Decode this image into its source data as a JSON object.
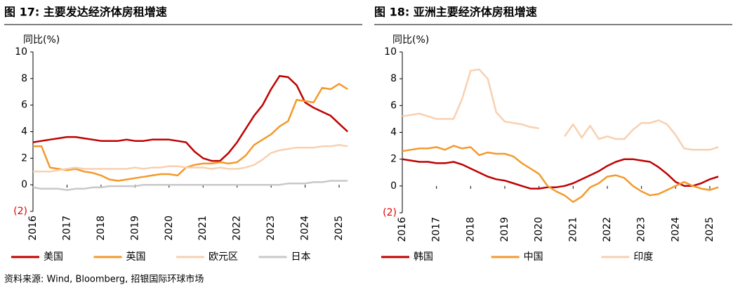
{
  "chart_data": [
    {
      "type": "line",
      "title": "图 17: 主要发达经济体房租增速",
      "y_label": "同比(%)",
      "x": [
        2016,
        2016.25,
        2016.5,
        2016.75,
        2017,
        2017.25,
        2017.5,
        2017.75,
        2018,
        2018.25,
        2018.5,
        2018.75,
        2019,
        2019.25,
        2019.5,
        2019.75,
        2020,
        2020.25,
        2020.5,
        2020.75,
        2021,
        2021.25,
        2021.5,
        2021.75,
        2022,
        2022.25,
        2022.5,
        2022.75,
        2023,
        2023.25,
        2023.5,
        2023.75,
        2024,
        2024.25,
        2024.5,
        2024.75,
        2025,
        2025.25
      ],
      "xlim": [
        2016,
        2025.35
      ],
      "xticks": [
        2016,
        2017,
        2018,
        2019,
        2020,
        2021,
        2022,
        2023,
        2024,
        2025
      ],
      "ylim": [
        -2,
        10
      ],
      "yticks": [
        {
          "value": -2,
          "label": "(2)"
        },
        0,
        2,
        4,
        6,
        8,
        10
      ],
      "negative_tick_color": "#e00000",
      "grid": false,
      "legend": "bottom",
      "series": [
        {
          "name": "美国",
          "color": "#c00000",
          "values": [
            3.2,
            3.3,
            3.4,
            3.5,
            3.6,
            3.6,
            3.5,
            3.4,
            3.3,
            3.3,
            3.3,
            3.4,
            3.3,
            3.3,
            3.4,
            3.4,
            3.4,
            3.3,
            3.2,
            2.5,
            2.0,
            1.8,
            1.8,
            2.4,
            3.2,
            4.2,
            5.2,
            6.0,
            7.2,
            8.2,
            8.1,
            7.5,
            6.2,
            5.8,
            5.5,
            5.2,
            4.6,
            4.0
          ]
        },
        {
          "name": "英国",
          "color": "#f39a2c",
          "values": [
            2.9,
            2.9,
            1.3,
            1.2,
            1.1,
            1.2,
            1.0,
            0.9,
            0.7,
            0.4,
            0.3,
            0.4,
            0.5,
            0.6,
            0.7,
            0.8,
            0.8,
            0.7,
            1.3,
            1.5,
            1.6,
            1.6,
            1.7,
            1.6,
            1.7,
            2.2,
            3.0,
            3.4,
            3.8,
            4.4,
            4.8,
            6.4,
            6.3,
            6.2,
            7.3,
            7.2,
            7.6,
            7.2
          ]
        },
        {
          "name": "欧元区",
          "color": "#f8d0b0",
          "values": [
            1.0,
            1.0,
            1.0,
            1.1,
            1.2,
            1.3,
            1.2,
            1.2,
            1.2,
            1.2,
            1.2,
            1.2,
            1.3,
            1.2,
            1.3,
            1.3,
            1.4,
            1.4,
            1.3,
            1.3,
            1.3,
            1.2,
            1.3,
            1.2,
            1.2,
            1.3,
            1.5,
            1.9,
            2.4,
            2.6,
            2.7,
            2.8,
            2.8,
            2.8,
            2.9,
            2.9,
            3.0,
            2.9
          ]
        },
        {
          "name": "日本",
          "color": "#c8c8c8",
          "values": [
            -0.2,
            -0.3,
            -0.3,
            -0.3,
            -0.4,
            -0.3,
            -0.3,
            -0.2,
            -0.2,
            -0.1,
            -0.1,
            -0.1,
            -0.1,
            0,
            0,
            0,
            0,
            0,
            0,
            0,
            0,
            0,
            0,
            0,
            0,
            0,
            0,
            0,
            0,
            0,
            0.1,
            0.1,
            0.1,
            0.2,
            0.2,
            0.3,
            0.3,
            0.3
          ]
        }
      ]
    },
    {
      "type": "line",
      "title": "图 18: 亚洲主要经济体房租增速",
      "y_label": "同比(%)",
      "x": [
        2016,
        2016.25,
        2016.5,
        2016.75,
        2017,
        2017.25,
        2017.5,
        2017.75,
        2018,
        2018.25,
        2018.5,
        2018.75,
        2019,
        2019.25,
        2019.5,
        2019.75,
        2020,
        2020.25,
        2020.5,
        2020.75,
        2021,
        2021.25,
        2021.5,
        2021.75,
        2022,
        2022.25,
        2022.5,
        2022.75,
        2023,
        2023.25,
        2023.5,
        2023.75,
        2024,
        2024.25,
        2024.5,
        2024.75,
        2025,
        2025.25
      ],
      "xlim": [
        2016,
        2025.35
      ],
      "xticks": [
        2016,
        2017,
        2018,
        2019,
        2020,
        2021,
        2022,
        2023,
        2024,
        2025
      ],
      "ylim": [
        -2,
        10
      ],
      "yticks": [
        {
          "value": -2,
          "label": "(2)"
        },
        0,
        2,
        4,
        6,
        8,
        10
      ],
      "negative_tick_color": "#e00000",
      "grid": false,
      "legend": "bottom",
      "series": [
        {
          "name": "韩国",
          "color": "#c00000",
          "values": [
            2.0,
            1.9,
            1.8,
            1.8,
            1.7,
            1.7,
            1.8,
            1.6,
            1.3,
            1.0,
            0.7,
            0.5,
            0.4,
            0.2,
            0.0,
            -0.2,
            -0.2,
            -0.1,
            -0.1,
            0.0,
            0.2,
            0.5,
            0.8,
            1.1,
            1.5,
            1.8,
            2.0,
            2.0,
            1.9,
            1.8,
            1.4,
            0.9,
            0.3,
            0.0,
            0.0,
            0.2,
            0.5,
            0.7
          ]
        },
        {
          "name": "中国",
          "color": "#f39a2c",
          "values": [
            2.6,
            2.7,
            2.8,
            2.8,
            2.9,
            2.7,
            3.0,
            2.8,
            2.9,
            2.3,
            2.5,
            2.4,
            2.4,
            2.2,
            1.7,
            1.3,
            0.9,
            0.0,
            -0.4,
            -0.7,
            -1.2,
            -0.8,
            -0.1,
            0.2,
            0.7,
            0.8,
            0.6,
            0.0,
            -0.4,
            -0.7,
            -0.6,
            -0.3,
            0.0,
            0.3,
            0.0,
            -0.2,
            -0.3,
            -0.1
          ]
        },
        {
          "name": "印度",
          "color": "#f8d0b0",
          "values": [
            5.2,
            5.3,
            5.4,
            5.2,
            5.0,
            5.0,
            5.0,
            6.5,
            8.6,
            8.7,
            8.0,
            5.5,
            4.8,
            4.7,
            4.6,
            4.4,
            4.3,
            null,
            null,
            3.7,
            4.6,
            3.6,
            4.5,
            3.5,
            3.7,
            3.5,
            3.5,
            4.2,
            4.7,
            4.7,
            4.9,
            4.6,
            3.8,
            2.8,
            2.7,
            2.7,
            2.7,
            2.9
          ]
        }
      ]
    }
  ],
  "source": "资料来源: Wind, Bloomberg, 招银国际环球市场"
}
